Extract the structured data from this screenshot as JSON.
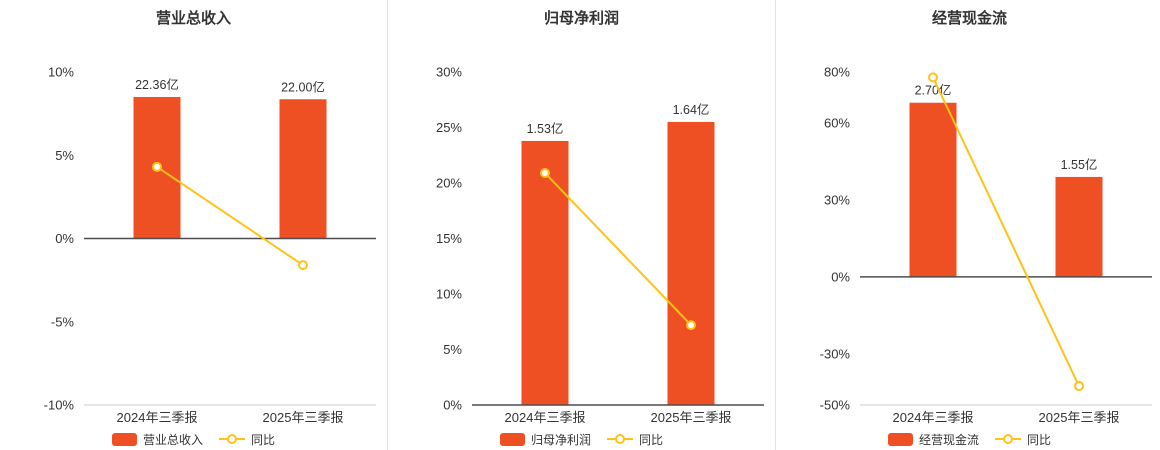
{
  "chart_data": [
    {
      "type": "bar",
      "title": "营业总收入",
      "categories": [
        "2024年三季报",
        "2025年三季报"
      ],
      "bar_series": {
        "name": "营业总收入",
        "unit": "亿",
        "values": [
          22.36,
          22.0
        ],
        "labels": [
          "22.36亿",
          "22.00亿"
        ]
      },
      "line_series": {
        "name": "同比",
        "unit": "%",
        "values": [
          4.3,
          -1.6
        ]
      },
      "y_axis": {
        "min": -10,
        "max": 10,
        "ticks": [
          -10,
          -5,
          0,
          5,
          10
        ],
        "suffix": "%"
      },
      "legend_position": "bottom",
      "grid": false
    },
    {
      "type": "bar",
      "title": "归母净利润",
      "categories": [
        "2024年三季报",
        "2025年三季报"
      ],
      "bar_series": {
        "name": "归母净利润",
        "unit": "亿",
        "values": [
          1.53,
          1.64
        ],
        "labels": [
          "1.53亿",
          "1.64亿"
        ]
      },
      "line_series": {
        "name": "同比",
        "unit": "%",
        "values": [
          20.9,
          7.2
        ]
      },
      "y_axis": {
        "min": 0,
        "max": 30,
        "ticks": [
          0,
          5,
          10,
          15,
          20,
          25,
          30
        ],
        "suffix": "%"
      },
      "legend_position": "bottom",
      "grid": false
    },
    {
      "type": "bar",
      "title": "经营现金流",
      "categories": [
        "2024年三季报",
        "2025年三季报"
      ],
      "bar_series": {
        "name": "经营现金流",
        "unit": "亿",
        "values": [
          2.7,
          1.55
        ],
        "labels": [
          "2.70亿",
          "1.55亿"
        ]
      },
      "line_series": {
        "name": "同比",
        "unit": "%",
        "values": [
          77.9,
          -42.6
        ]
      },
      "y_axis": {
        "min": -50,
        "max": 80,
        "ticks": [
          -50,
          -30,
          0,
          30,
          60,
          80
        ],
        "suffix": "%"
      },
      "legend_position": "bottom",
      "grid": false
    }
  ],
  "style": {
    "bar_color": "#ee4f23",
    "line_color": "#ffc216",
    "axis_text_color": "#333333",
    "zero_line_color": "#4d4d4d",
    "bottom_line_color": "#cccccc",
    "divider_color": "#e2e2e2",
    "background": "#ffffff"
  }
}
